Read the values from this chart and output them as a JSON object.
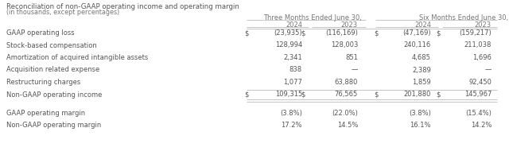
{
  "title1": "Reconciliation of non-GAAP operating income and operating margin",
  "title2": "(in thousands, except percentages)",
  "col_header1": "Three Months Ended June 30,",
  "col_header2": "Six Months Ended June 30,",
  "col_years": [
    "2024",
    "2023",
    "2024",
    "2023"
  ],
  "rows": [
    {
      "label": "GAAP operating loss",
      "has_dollar": true,
      "values": [
        "(23,935)",
        "(116,169)",
        "(47,169)",
        "(159,217)"
      ]
    },
    {
      "label": "Stock-based compensation",
      "has_dollar": false,
      "values": [
        "128,994",
        "128,003",
        "240,116",
        "211,038"
      ]
    },
    {
      "label": "Amortization of acquired intangible assets",
      "has_dollar": false,
      "values": [
        "2,341",
        "851",
        "4,685",
        "1,696"
      ]
    },
    {
      "label": "Acquisition related expense",
      "has_dollar": false,
      "values": [
        "838",
        "—",
        "2,389",
        "—"
      ]
    },
    {
      "label": "Restructuring charges",
      "has_dollar": false,
      "values": [
        "1,077",
        "63,880",
        "1,859",
        "92,450"
      ]
    },
    {
      "label": "Non-GAAP operating income",
      "has_dollar": true,
      "values": [
        "109,315",
        "76,565",
        "201,880",
        "145,967"
      ]
    }
  ],
  "margin_rows": [
    {
      "label": "GAAP operating margin",
      "values": [
        "(3.8%)",
        "(22.0%)",
        "(3.8%)",
        "(15.4%)"
      ]
    },
    {
      "label": "Non-GAAP operating margin",
      "values": [
        "17.2%",
        "14.5%",
        "16.1%",
        "14.2%"
      ]
    }
  ],
  "bg_color": "#ffffff",
  "text_color": "#555555",
  "header_color": "#777777",
  "line_color": "#bbbbbb"
}
